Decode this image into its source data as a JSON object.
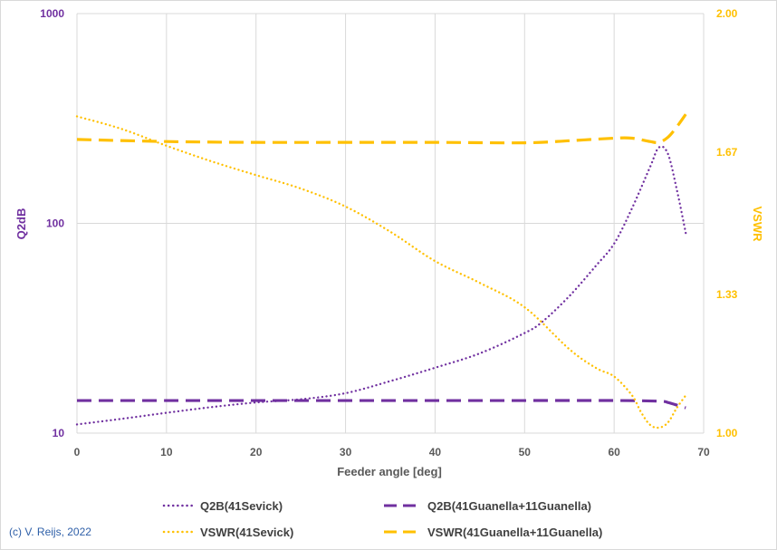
{
  "chart_data": {
    "type": "line",
    "xlabel": "Feeder angle [deg]",
    "ylabel_left": "Q2dB",
    "ylabel_right": "VSWR",
    "x_ticks": [
      "0",
      "10",
      "20",
      "30",
      "40",
      "50",
      "60",
      "70"
    ],
    "xlim": [
      0,
      70
    ],
    "y_left_scale": "log",
    "y_left_ticks": [
      "10",
      "100",
      "1000"
    ],
    "y_left_lim": [
      10,
      1000
    ],
    "y_right_ticks": [
      "1.00",
      "1.33",
      "1.67",
      "2.00"
    ],
    "y_right_lim": [
      1.0,
      2.0
    ],
    "grid": "vertical-major-and-left-log-decades",
    "colors": {
      "purple": "#7030a0",
      "gold": "#ffc000",
      "grid": "#d9d9d9",
      "axis_text": "#595959"
    },
    "series": [
      {
        "name": "Q2B(41Sevick)",
        "axis": "left",
        "style": "dotted",
        "color": "#7030a0",
        "x": [
          0,
          5,
          10,
          15,
          20,
          25,
          30,
          35,
          40,
          45,
          50,
          52,
          55,
          58,
          60,
          62,
          64,
          65,
          66,
          67,
          68
        ],
        "y": [
          11,
          11.7,
          12.5,
          13.3,
          14,
          14.5,
          15.5,
          17.7,
          20.5,
          24,
          30,
          34,
          45,
          63,
          80,
          118,
          185,
          230,
          215,
          145,
          90
        ]
      },
      {
        "name": "Q2B(41Guanella+11Guanella)",
        "axis": "left",
        "style": "dashed",
        "color": "#7030a0",
        "x": [
          0,
          10,
          20,
          30,
          40,
          50,
          60,
          65,
          66,
          67,
          68
        ],
        "y": [
          14.3,
          14.3,
          14.3,
          14.3,
          14.3,
          14.3,
          14.3,
          14.2,
          14,
          13.6,
          13.2
        ]
      },
      {
        "name": "VSWR(41Sevick)",
        "axis": "right",
        "style": "dotted",
        "color": "#ffc000",
        "x": [
          0,
          5,
          10,
          15,
          20,
          25,
          30,
          35,
          40,
          45,
          50,
          55,
          58,
          60,
          62,
          63,
          64,
          65,
          66,
          67,
          68
        ],
        "y": [
          1.755,
          1.725,
          1.685,
          1.648,
          1.615,
          1.583,
          1.54,
          1.48,
          1.41,
          1.358,
          1.3,
          1.2,
          1.155,
          1.135,
          1.09,
          1.05,
          1.02,
          1.013,
          1.025,
          1.06,
          1.09
        ]
      },
      {
        "name": "VSWR(41Guanella+11Guanella)",
        "axis": "right",
        "style": "dashed",
        "color": "#ffc000",
        "x": [
          0,
          10,
          20,
          30,
          40,
          50,
          55,
          60,
          62,
          64,
          65,
          66,
          67,
          68
        ],
        "y": [
          1.7,
          1.695,
          1.693,
          1.693,
          1.693,
          1.692,
          1.697,
          1.703,
          1.703,
          1.695,
          1.693,
          1.705,
          1.73,
          1.76
        ]
      }
    ]
  },
  "credit": "(c) V. Reijs, 2022"
}
